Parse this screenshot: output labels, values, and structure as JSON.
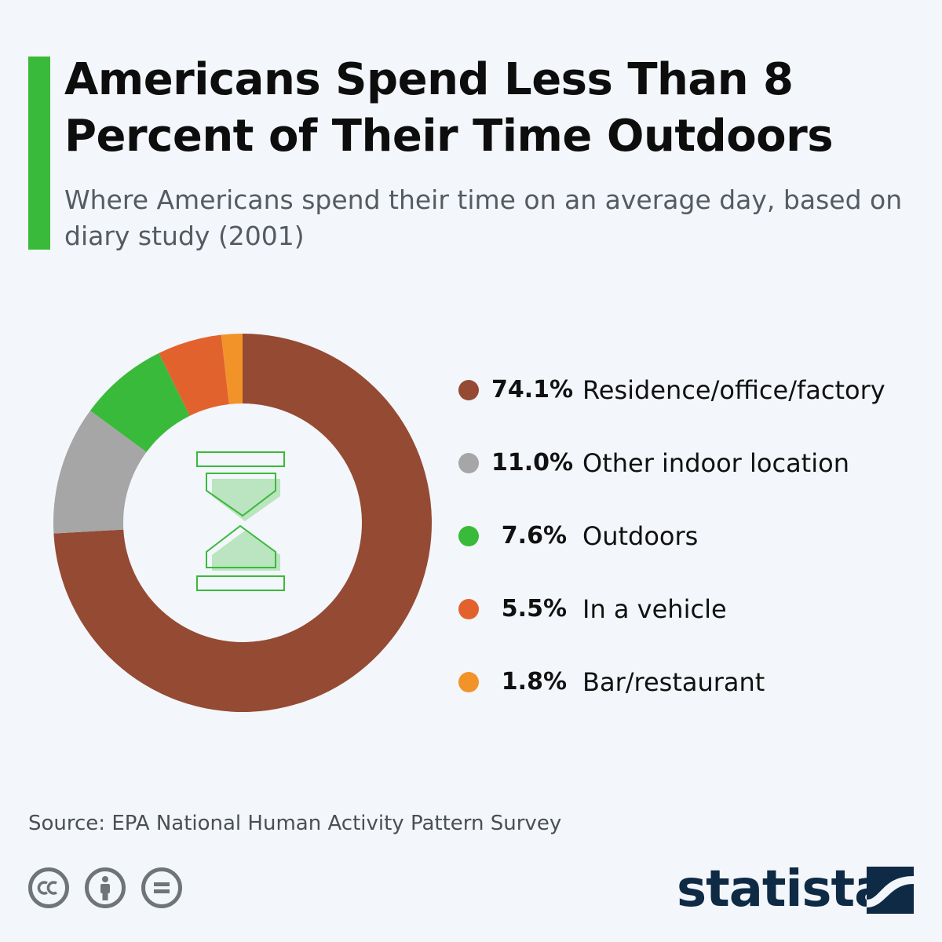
{
  "header": {
    "title": "Americans Spend Less Than 8 Percent of Their Time Outdoors",
    "subtitle": "Where Americans spend their time on an average day, based on diary study (2001)"
  },
  "chart_data": {
    "type": "pie",
    "title": "Americans Spend Less Than 8 Percent of Their Time Outdoors",
    "subtitle": "Where Americans spend their time on an average day, based on diary study (2001)",
    "slices": [
      {
        "label": "Residence/office/factory",
        "value": 74.1,
        "display": "74.1%",
        "color": "#944a33"
      },
      {
        "label": "Other indoor location",
        "value": 11.0,
        "display": "11.0%",
        "color": "#a6a6a6"
      },
      {
        "label": "Outdoors",
        "value": 7.6,
        "display": "7.6%",
        "color": "#3aba3a"
      },
      {
        "label": "In a vehicle",
        "value": 5.5,
        "display": "5.5%",
        "color": "#e2622e"
      },
      {
        "label": "Bar/restaurant",
        "value": 1.8,
        "display": "1.8%",
        "color": "#f2932a"
      }
    ],
    "legend_position": "right",
    "center_icon": "hourglass-icon"
  },
  "footer": {
    "source": "Source: EPA National Human Activity Pattern Survey",
    "brand": "statista",
    "license_icons": [
      "cc-icon",
      "attribution-icon",
      "no-derivatives-icon"
    ]
  },
  "colors": {
    "accent": "#3aba3a",
    "brand": "#0f2a44"
  }
}
